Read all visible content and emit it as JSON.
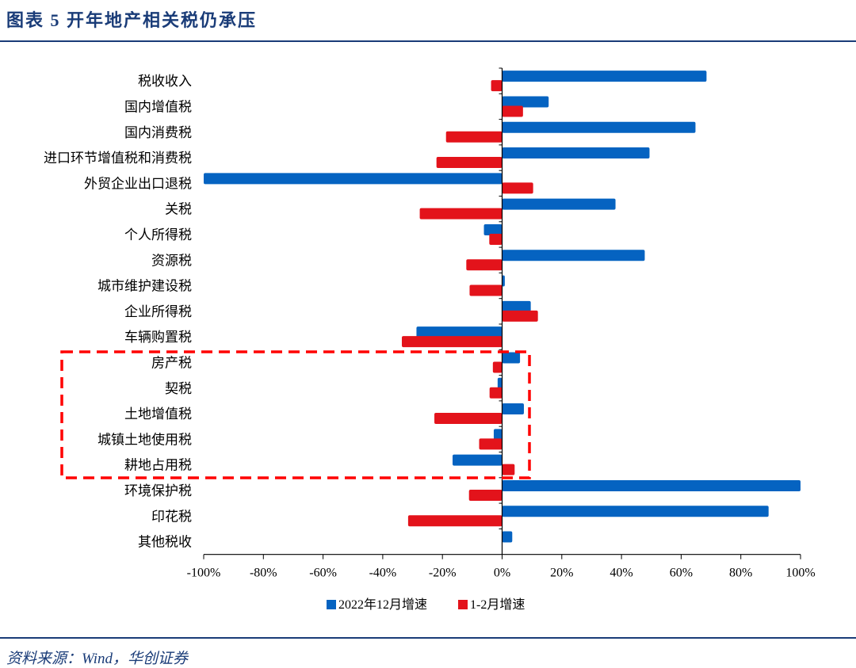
{
  "header": {
    "title": "图表 5   开年地产相关税仍承压"
  },
  "footer": {
    "source": "资料来源：Wind，华创证券"
  },
  "colors": {
    "series1": "#0563C1",
    "series2": "#E3131B",
    "highlight_box": "#FF0000",
    "title": "#1a3c78"
  },
  "chart_data": {
    "type": "bar",
    "orientation": "horizontal",
    "categories": [
      "税收收入",
      "国内增值税",
      "国内消费税",
      "进口环节增值税和消费税",
      "外贸企业出口退税",
      "关税",
      "个人所得税",
      "资源税",
      "城市维护建设税",
      "企业所得税",
      "车辆购置税",
      "房产税",
      "契税",
      "土地增值税",
      "城镇土地使用税",
      "耕地占用税",
      "环境保护税",
      "印花税",
      "其他税收"
    ],
    "series": [
      {
        "name": "2022年12月增速",
        "values": [
          68.5,
          15.6,
          64.8,
          49.4,
          -100,
          38,
          -6.1,
          47.8,
          0.9,
          9.6,
          -28.7,
          6,
          -1.5,
          7.3,
          -2.8,
          -16.6,
          100,
          89.3,
          3.4
        ]
      },
      {
        "name": "1-2月增速",
        "values": [
          -3.7,
          7,
          -18.8,
          -22,
          10.4,
          -27.6,
          -4.3,
          -12,
          -10.9,
          12,
          -33.6,
          -3.1,
          -4.2,
          -22.7,
          -7.7,
          4.2,
          -11.1,
          -31.5,
          0
        ]
      }
    ],
    "xlim": [
      -100,
      100
    ],
    "xticks": [
      "-100%",
      "-80%",
      "-60%",
      "-40%",
      "-20%",
      "0%",
      "20%",
      "40%",
      "60%",
      "80%",
      "100%"
    ],
    "unit": "%",
    "grid": false,
    "legend": "bottom",
    "highlighted_categories": [
      "房产税",
      "契税",
      "土地增值税",
      "城镇土地使用税",
      "耕地占用税"
    ]
  }
}
